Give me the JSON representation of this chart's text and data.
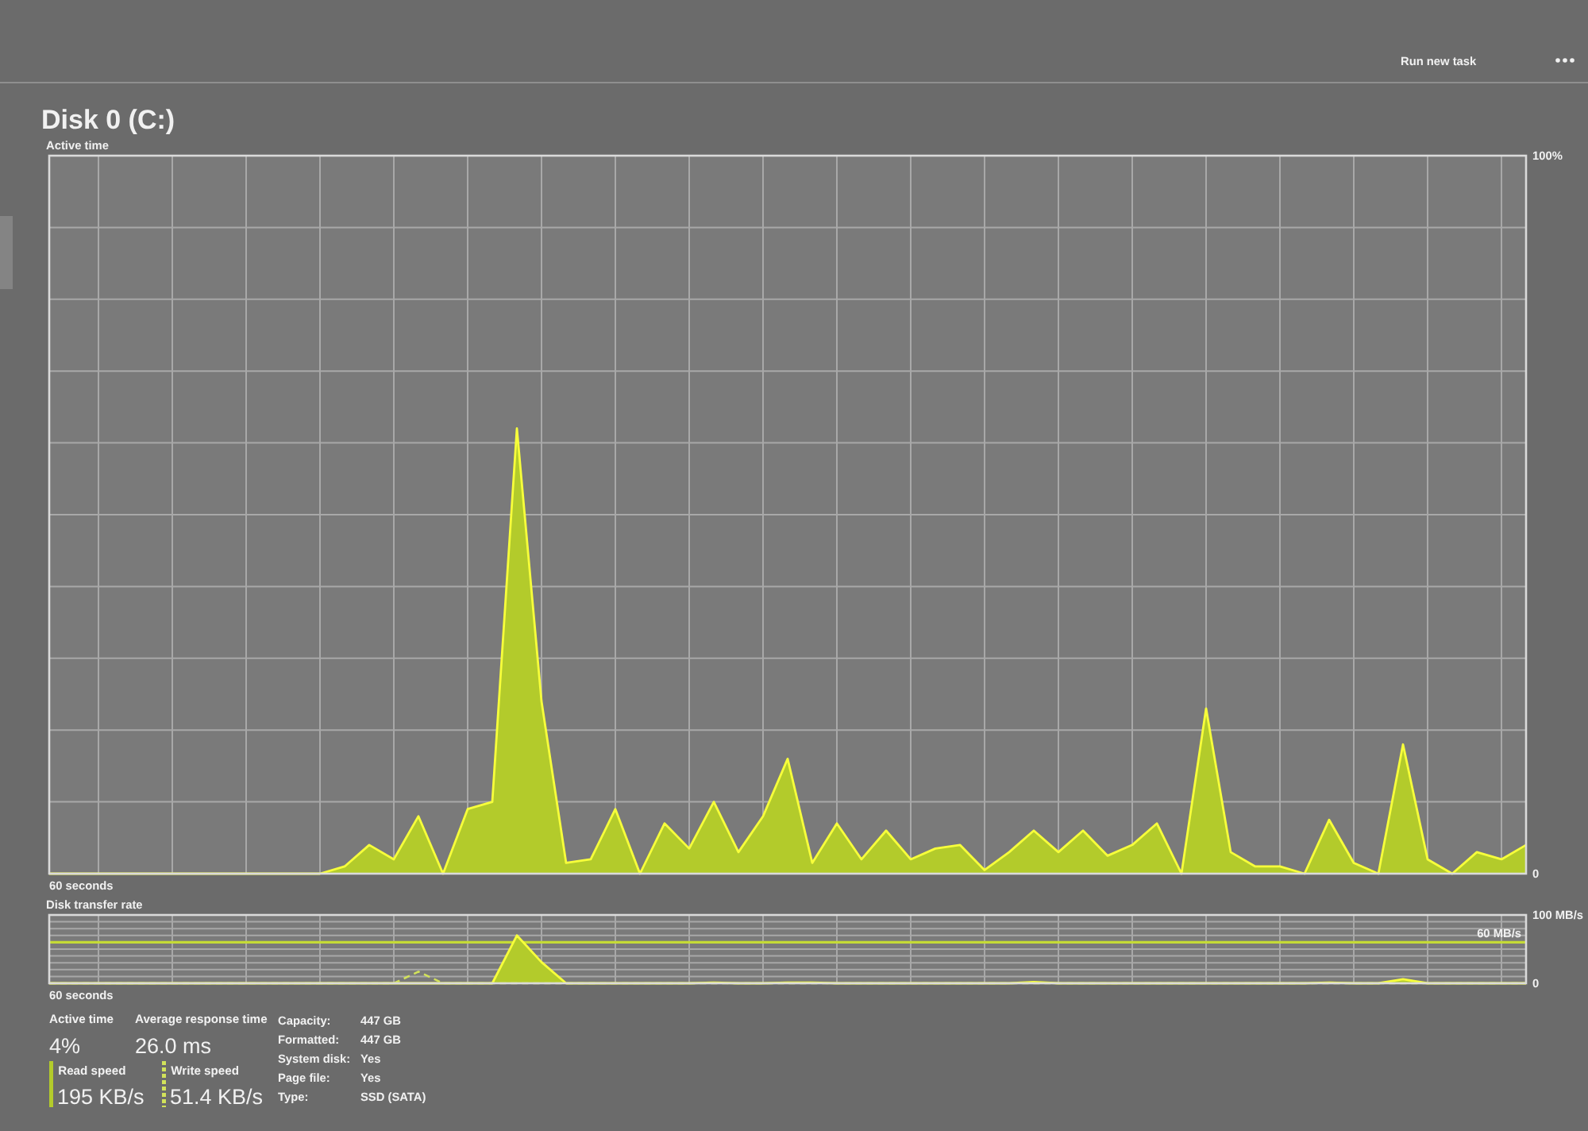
{
  "chart_data": [
    {
      "type": "area",
      "title": "Disk 0 (C:)",
      "ylabel": "Active time",
      "annotations": [
        "60 seconds"
      ],
      "categories": [
        null,
        null,
        null,
        null,
        null,
        null,
        null,
        null,
        null,
        null,
        null,
        null,
        null,
        null,
        null,
        null,
        null,
        null,
        null,
        null,
        null,
        null,
        null,
        null,
        null,
        null,
        null,
        null,
        null,
        null,
        null,
        null,
        null,
        null,
        null,
        null,
        null,
        null,
        null,
        null,
        null,
        null,
        null,
        null,
        null,
        null,
        null,
        null,
        null,
        null,
        null,
        null,
        null,
        null,
        null,
        null,
        null,
        null,
        null,
        null,
        null
      ],
      "ylim": [
        0,
        100
      ],
      "yticks": [
        0,
        {
          "value": 10,
          "label": null
        },
        {
          "value": 20,
          "label": null
        },
        {
          "value": 30,
          "label": null
        },
        {
          "value": 40,
          "label": null
        },
        {
          "value": 50,
          "label": null
        },
        {
          "value": 60,
          "label": null
        },
        {
          "value": 70,
          "label": null
        },
        {
          "value": 80,
          "label": null
        },
        {
          "value": 90,
          "label": null
        },
        {
          "value": 100,
          "label": "100%"
        }
      ],
      "grid": true,
      "color": "#b3cb2b",
      "values": [
        0,
        0,
        0,
        0,
        0,
        0,
        0,
        0,
        0,
        0,
        0,
        0,
        1,
        4,
        2,
        8,
        0,
        9,
        10,
        62,
        24,
        1.5,
        2,
        9,
        0,
        7,
        3.5,
        10,
        3,
        8,
        16,
        1.5,
        7,
        2,
        6,
        2,
        3.5,
        4,
        0.5,
        3,
        6,
        3,
        6,
        2.5,
        4,
        7,
        0,
        23,
        3,
        1,
        1,
        0,
        7.5,
        1.5,
        0,
        18,
        2,
        0,
        3,
        2,
        4
      ]
    },
    {
      "type": "area",
      "ylabel": "Disk transfer rate",
      "annotations": [
        "60 seconds"
      ],
      "categories": [
        null,
        null,
        null,
        null,
        null,
        null,
        null,
        null,
        null,
        null,
        null,
        null,
        null,
        null,
        null,
        null,
        null,
        null,
        null,
        null,
        null,
        null,
        null,
        null,
        null,
        null,
        null,
        null,
        null,
        null,
        null,
        null,
        null,
        null,
        null,
        null,
        null,
        null,
        null,
        null,
        null,
        null,
        null,
        null,
        null,
        null,
        null,
        null,
        null,
        null,
        null,
        null,
        null,
        null,
        null,
        null,
        null,
        null,
        null,
        null,
        null
      ],
      "ylim": [
        0,
        100
      ],
      "yticks": [
        0,
        {
          "value": 10,
          "label": null
        },
        {
          "value": 20,
          "label": null
        },
        {
          "value": 30,
          "label": null
        },
        {
          "value": 40,
          "label": null
        },
        {
          "value": 50,
          "label": null
        },
        {
          "value": 60,
          "label": null
        },
        {
          "value": 70,
          "label": null
        },
        {
          "value": 80,
          "label": null
        },
        {
          "value": 90,
          "label": null
        },
        {
          "value": 100,
          "label": "100 MB/s"
        }
      ],
      "grid": true,
      "series": [
        {
          "name": "Read speed",
          "color": "#b3cb2b",
          "values": [
            0,
            0,
            0,
            0,
            0,
            0,
            0,
            0,
            0,
            0,
            0,
            0,
            0,
            0,
            0,
            0,
            0,
            0,
            0,
            70,
            31,
            0,
            0,
            0,
            0,
            0,
            0,
            1,
            0,
            0,
            1,
            1,
            0,
            0,
            0,
            0,
            0,
            0,
            0,
            0,
            2,
            0,
            0,
            0,
            0,
            0,
            0,
            0,
            0,
            0,
            0,
            0,
            1,
            0,
            0,
            6,
            0,
            0,
            0,
            0,
            0
          ]
        },
        {
          "name": "Write speed",
          "type": "line",
          "line_style": "dashed",
          "color": "#d2e25a",
          "values": [
            0,
            0,
            0,
            0,
            0,
            0,
            0,
            0,
            0,
            0,
            0,
            0,
            0,
            0,
            0,
            17,
            0,
            0,
            0,
            0,
            0,
            0,
            0,
            0,
            0,
            0,
            0,
            0,
            0,
            0,
            0,
            0,
            0,
            0,
            0,
            0,
            0,
            0,
            0,
            0,
            0,
            0,
            0,
            0,
            0,
            0,
            0,
            0,
            0,
            0,
            0,
            0,
            0,
            0,
            0,
            0,
            0,
            0,
            0,
            0,
            0
          ]
        }
      ],
      "ref_lines": [
        {
          "axis": "y",
          "value": 60,
          "label": "60 MB/s",
          "color": "#c5da36"
        }
      ],
      "legend": "bottom"
    },
    {
      "type": "other",
      "annotations": [
        "Active time",
        "4%",
        "Average response time",
        "26.0 ms",
        "195 KB/s",
        "51.4 KB/s",
        "Capacity:",
        "447 GB",
        "Formatted:",
        "447 GB",
        "System disk:",
        "Yes",
        "Page file:",
        "Yes",
        "Type:",
        "SSD (SATA)",
        "Run new task"
      ]
    }
  ]
}
